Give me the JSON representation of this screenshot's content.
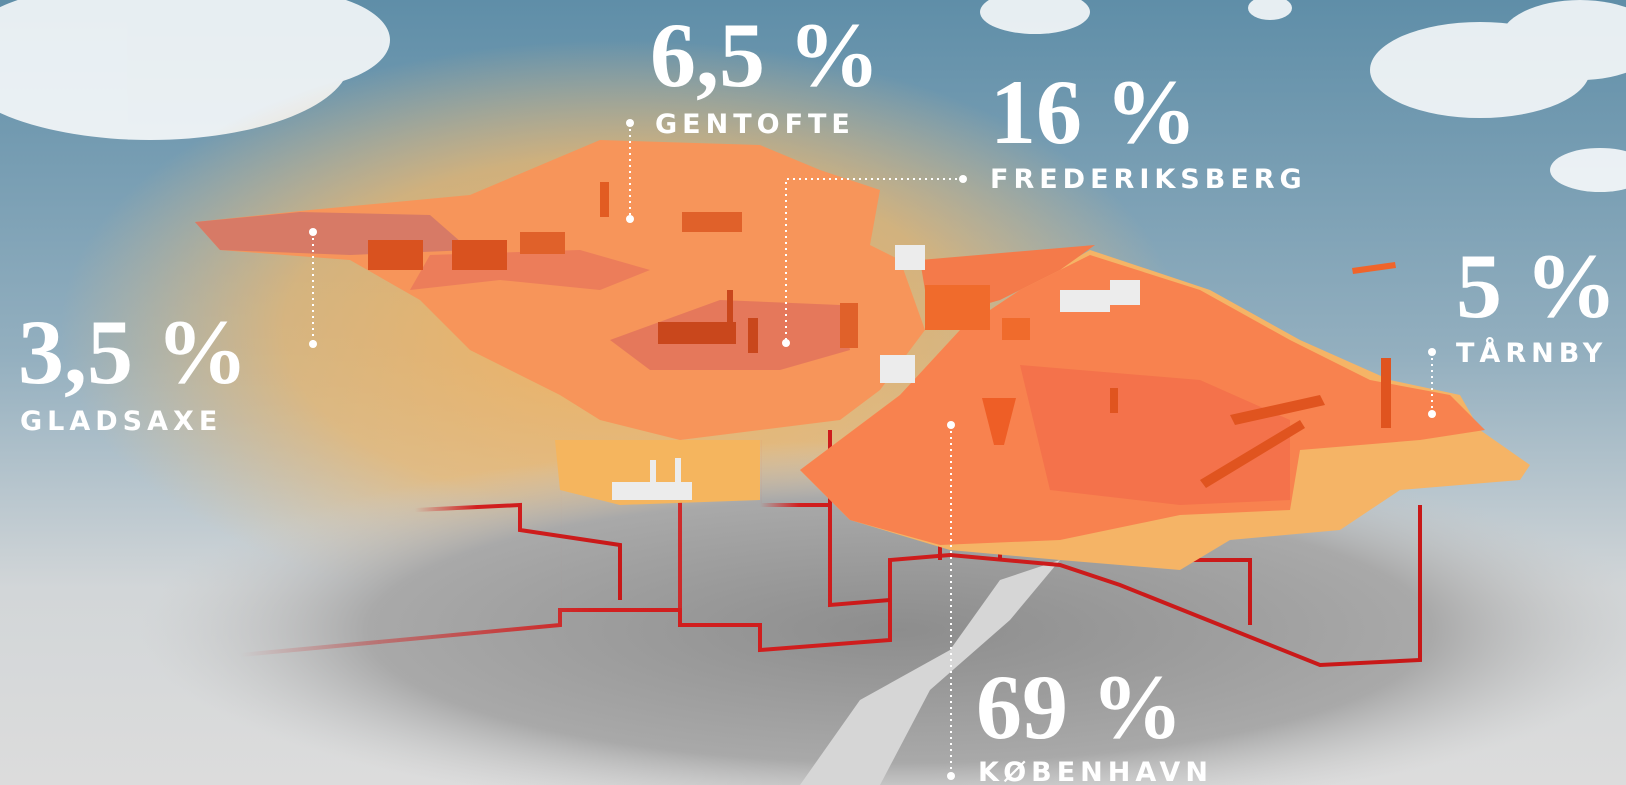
{
  "labels": [
    {
      "value": "6,5 %",
      "name": "GENTOFTE"
    },
    {
      "value": "16 %",
      "name": "FREDERIKSBERG"
    },
    {
      "value": "5 %",
      "name": "TÅRNBY"
    },
    {
      "value": "3,5 %",
      "name": "GLADSAXE"
    },
    {
      "value": "69 %",
      "name": "KØBENHAVN"
    }
  ]
}
